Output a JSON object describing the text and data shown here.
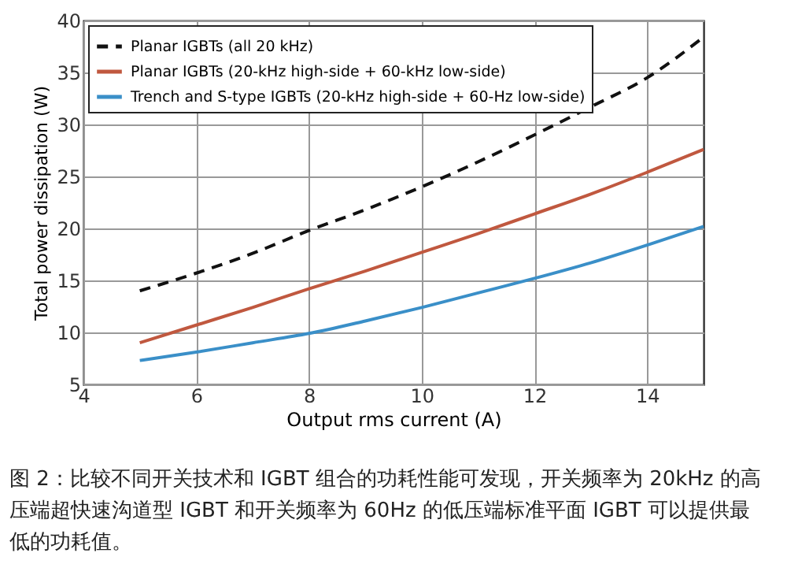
{
  "chart_data": {
    "type": "line",
    "xlabel": "Output rms current (A)",
    "ylabel": "Total power dissipation (W)",
    "x": [
      5,
      6,
      7,
      8,
      9,
      10,
      11,
      12,
      13,
      14,
      15
    ],
    "series": [
      {
        "name": "Planar IGBTs (all 20 kHz)",
        "color": "#111111",
        "line_style": "dashed",
        "values": [
          14,
          15.7,
          17.6,
          19.8,
          21.8,
          24,
          26.4,
          29,
          31.7,
          34.5,
          38.4
        ]
      },
      {
        "name": "Planar IGBTs (20-kHz high-side + 60-kHz low-side)",
        "color": "#c0583f",
        "line_style": "solid",
        "values": [
          9,
          10.7,
          12.4,
          14.2,
          15.9,
          17.7,
          19.5,
          21.4,
          23.3,
          25.4,
          27.6
        ]
      },
      {
        "name": "Trench and S-type IGBTs (20-kHz high-side + 60-Hz low-side)",
        "color": "#3a8fc8",
        "line_style": "solid",
        "values": [
          7.3,
          8.1,
          9,
          9.9,
          11.1,
          12.4,
          13.8,
          15.2,
          16.7,
          18.4,
          20.2
        ]
      }
    ],
    "xlim": [
      4,
      15
    ],
    "xticks": [
      4,
      6,
      8,
      10,
      12,
      14
    ],
    "ylim": [
      5,
      40
    ],
    "yticks": [
      5,
      10,
      15,
      20,
      25,
      30,
      35,
      40
    ],
    "grid": true,
    "legend": "top left",
    "marker": "none",
    "annotations": [
      "图 2：比较不同开关技术和 IGBT 组合的功耗性能可发现，开关频率为 20kHz 的高压端超快速沟道型 IGBT 和开关频率为 60Hz 的低压端标准平面 IGBT 可以提供最低的功耗值。"
    ]
  }
}
